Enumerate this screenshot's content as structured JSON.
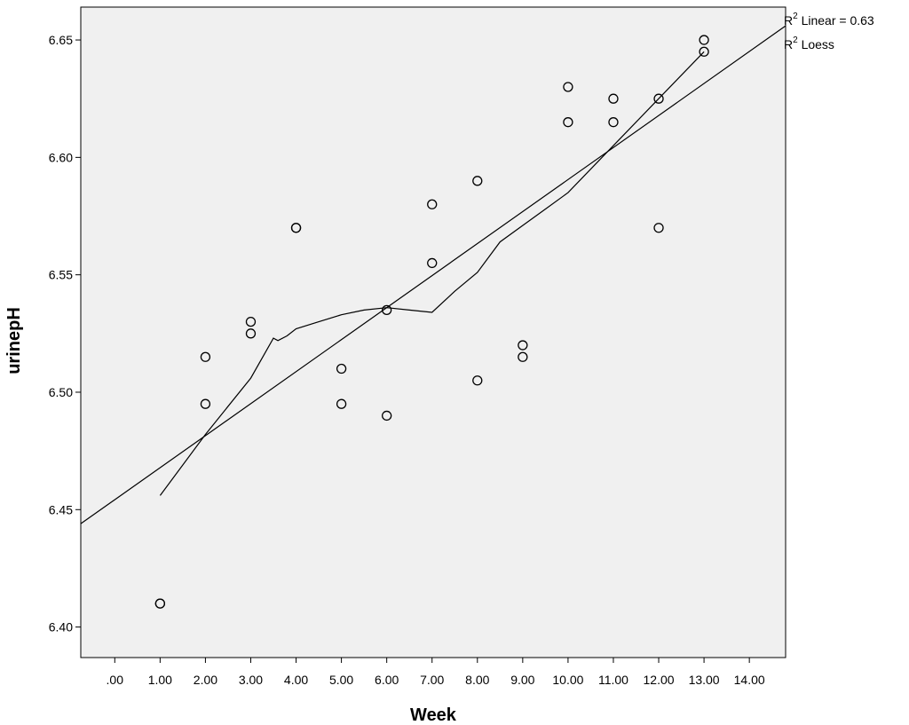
{
  "chart_data": {
    "type": "scatter",
    "xlabel": "Week",
    "ylabel": "urinepH",
    "xlim": [
      -0.75,
      14.8
    ],
    "ylim": [
      6.387,
      6.664
    ],
    "grid": false,
    "x_ticks": [
      0,
      1,
      2,
      3,
      4,
      5,
      6,
      7,
      8,
      9,
      10,
      11,
      12,
      13,
      14
    ],
    "x_tick_labels": [
      ".00",
      "1.00",
      "2.00",
      "3.00",
      "4.00",
      "5.00",
      "6.00",
      "7.00",
      "8.00",
      "9.00",
      "10.00",
      "11.00",
      "12.00",
      "13.00",
      "14.00"
    ],
    "y_ticks": [
      6.4,
      6.45,
      6.5,
      6.55,
      6.6,
      6.65
    ],
    "y_tick_labels": [
      "6.40",
      "6.45",
      "6.50",
      "6.55",
      "6.60",
      "6.65"
    ],
    "points": [
      {
        "x": 1,
        "y": 6.41
      },
      {
        "x": 1,
        "y": 6.41
      },
      {
        "x": 2,
        "y": 6.515
      },
      {
        "x": 2,
        "y": 6.495
      },
      {
        "x": 3,
        "y": 6.53
      },
      {
        "x": 3,
        "y": 6.525
      },
      {
        "x": 4,
        "y": 6.57
      },
      {
        "x": 4,
        "y": 6.57
      },
      {
        "x": 5,
        "y": 6.51
      },
      {
        "x": 5,
        "y": 6.495
      },
      {
        "x": 6,
        "y": 6.535
      },
      {
        "x": 6,
        "y": 6.49
      },
      {
        "x": 7,
        "y": 6.58
      },
      {
        "x": 7,
        "y": 6.555
      },
      {
        "x": 8,
        "y": 6.59
      },
      {
        "x": 8,
        "y": 6.505
      },
      {
        "x": 9,
        "y": 6.52
      },
      {
        "x": 9,
        "y": 6.515
      },
      {
        "x": 10,
        "y": 6.63
      },
      {
        "x": 10,
        "y": 6.615
      },
      {
        "x": 11,
        "y": 6.625
      },
      {
        "x": 11,
        "y": 6.615
      },
      {
        "x": 12,
        "y": 6.625
      },
      {
        "x": 12,
        "y": 6.57
      },
      {
        "x": 13,
        "y": 6.65
      },
      {
        "x": 13,
        "y": 6.645
      }
    ],
    "linear_fit": [
      {
        "x": -0.75,
        "y": 6.444
      },
      {
        "x": 14.8,
        "y": 6.656
      }
    ],
    "loess_fit": [
      {
        "x": 1.0,
        "y": 6.456
      },
      {
        "x": 2.0,
        "y": 6.482
      },
      {
        "x": 3.0,
        "y": 6.506
      },
      {
        "x": 3.5,
        "y": 6.523
      },
      {
        "x": 3.6,
        "y": 6.522
      },
      {
        "x": 3.8,
        "y": 6.524
      },
      {
        "x": 4.0,
        "y": 6.527
      },
      {
        "x": 4.5,
        "y": 6.53
      },
      {
        "x": 5.0,
        "y": 6.533
      },
      {
        "x": 5.5,
        "y": 6.535
      },
      {
        "x": 6.0,
        "y": 6.536
      },
      {
        "x": 6.5,
        "y": 6.535
      },
      {
        "x": 7.0,
        "y": 6.534
      },
      {
        "x": 7.5,
        "y": 6.543
      },
      {
        "x": 8.0,
        "y": 6.551
      },
      {
        "x": 8.5,
        "y": 6.564
      },
      {
        "x": 9.0,
        "y": 6.571
      },
      {
        "x": 9.5,
        "y": 6.578
      },
      {
        "x": 10.0,
        "y": 6.585
      },
      {
        "x": 11.0,
        "y": 6.605
      },
      {
        "x": 12.0,
        "y": 6.625
      },
      {
        "x": 13.0,
        "y": 6.645
      }
    ],
    "annotations": {
      "linear_prefix": "R",
      "linear_sup": "2",
      "linear_text": " Linear = 0.63",
      "loess_prefix": "R",
      "loess_sup": "2",
      "loess_text": " Loess"
    },
    "colors": {
      "plot_background": "#f0f0f0",
      "line": "#000000",
      "marker": "#000000"
    }
  }
}
